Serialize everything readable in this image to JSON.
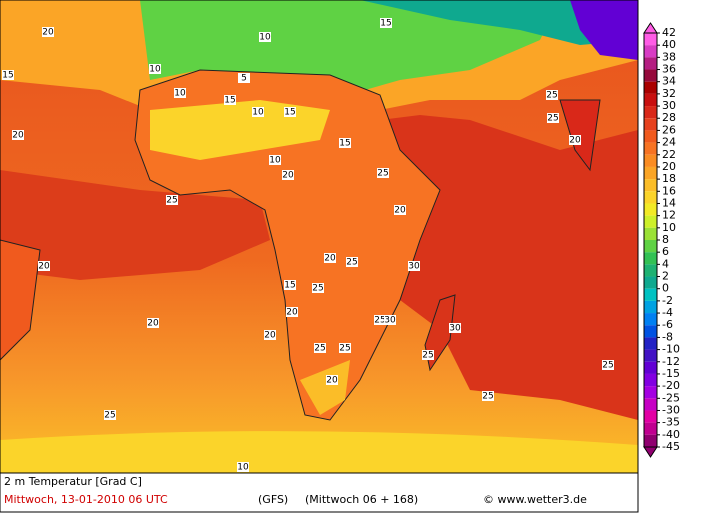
{
  "map": {
    "title": "2 m Temperatur [Grad C]",
    "date": "Mittwoch, 13-01-2010  06 UTC",
    "model": "(GFS)",
    "run": "(Mittwoch 06 + 168)",
    "credit": "© www.wetter3.de",
    "contour_labels": [
      15,
      20,
      20,
      25,
      25,
      10,
      15,
      10,
      15,
      10,
      15,
      20,
      20,
      25,
      20,
      25,
      25,
      30,
      30,
      25,
      20,
      25,
      25,
      20,
      15,
      20,
      25,
      25,
      20,
      10,
      25,
      25,
      20,
      20,
      15,
      30,
      25,
      10,
      5,
      10
    ]
  },
  "colorbar": {
    "ticks": [
      42,
      40,
      38,
      36,
      34,
      32,
      30,
      28,
      26,
      24,
      22,
      20,
      18,
      16,
      14,
      12,
      10,
      8,
      6,
      4,
      2,
      0,
      -2,
      -4,
      -6,
      -8,
      -10,
      -12,
      -15,
      -20,
      -25,
      -30,
      -35,
      -40,
      -45
    ],
    "colors": [
      "#ff5ce6",
      "#d83cc4",
      "#b41e82",
      "#960a3c",
      "#aa0000",
      "#c80f0f",
      "#d92819",
      "#e6411e",
      "#f05a1e",
      "#f77323",
      "#fa8c23",
      "#fba526",
      "#fbbd28",
      "#fbd42a",
      "#f2ea26",
      "#cdf02a",
      "#9be136",
      "#5fd244",
      "#32c154",
      "#1eb272",
      "#0fa98f",
      "#00c2c2",
      "#00a2e2",
      "#0080f2",
      "#0052e2",
      "#2222c4",
      "#4212c4",
      "#6200d4",
      "#8200e2",
      "#a400e2",
      "#c600c4",
      "#e200a4",
      "#c00090",
      "#900070"
    ]
  }
}
